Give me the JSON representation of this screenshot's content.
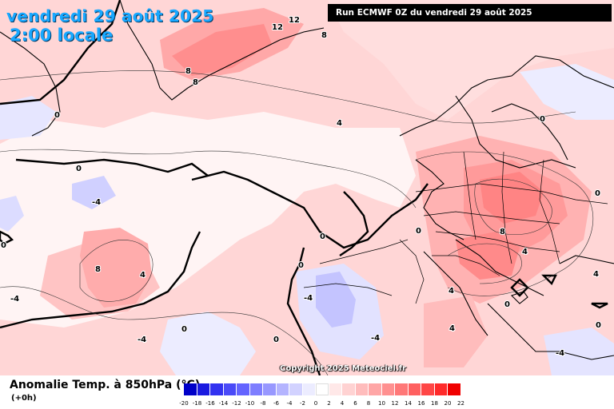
{
  "header": {
    "date": "vendredi 29 août 2025",
    "time": "2:00 locale",
    "run": "Run ECMWF 0Z du vendredi 29 août 2025"
  },
  "footer": {
    "parameter": "Anomalie Temp. à 850hPa (°C)",
    "step": "(+0h)",
    "copyright": "Copyright 2025 Meteociel.fr"
  },
  "legend": {
    "colors": [
      "#0000c8",
      "#1a1ae0",
      "#3232f0",
      "#4a4af8",
      "#6464ff",
      "#7e7eff",
      "#9898ff",
      "#b4b4ff",
      "#d2d2ff",
      "#ececff",
      "#ffffff",
      "#ffe8e8",
      "#ffd2d2",
      "#ffbcbc",
      "#ffa6a6",
      "#ff9090",
      "#ff7878",
      "#ff6060",
      "#ff4646",
      "#ff2a2a",
      "#f00000"
    ],
    "labels": [
      "-20",
      "-18",
      "-16",
      "-14",
      "-12",
      "-10",
      "-8",
      "-6",
      "-4",
      "-2",
      "0",
      "2",
      "4",
      "6",
      "8",
      "10",
      "12",
      "14",
      "16",
      "18",
      "20",
      "22"
    ]
  },
  "contour_labels": [
    "12",
    "12",
    "8",
    "8",
    "8",
    "4",
    "0",
    "0",
    "-4",
    "8",
    "4",
    "0",
    "0",
    "-4",
    "-4",
    "0",
    "-4",
    "0",
    "0",
    "0",
    "8",
    "4",
    "4",
    "4",
    "0",
    "0",
    "0",
    "4",
    "-4",
    "-4",
    "0"
  ]
}
